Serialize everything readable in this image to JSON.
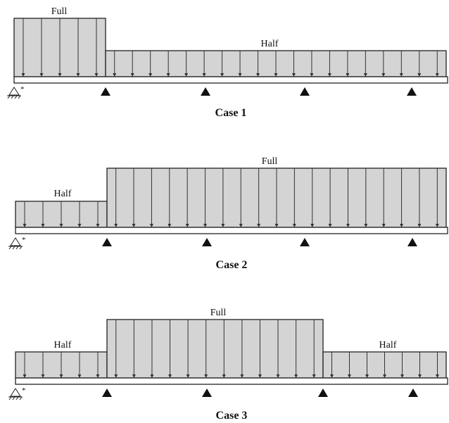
{
  "cases": [
    {
      "title": "Case 1",
      "segments": [
        {
          "label": "Full",
          "level": "full"
        },
        {
          "label": "Half",
          "level": "half"
        }
      ]
    },
    {
      "title": "Case 2",
      "segments": [
        {
          "label": "Half",
          "level": "half"
        },
        {
          "label": "Full",
          "level": "full"
        }
      ]
    },
    {
      "title": "Case 3",
      "segments": [
        {
          "label": "Half",
          "level": "half"
        },
        {
          "label": "Full",
          "level": "full"
        },
        {
          "label": "Half",
          "level": "half"
        }
      ]
    }
  ],
  "pin_marker": "*",
  "colors": {
    "load_fill": "#d4d4d4",
    "stroke": "#222222",
    "support": "#111111"
  }
}
